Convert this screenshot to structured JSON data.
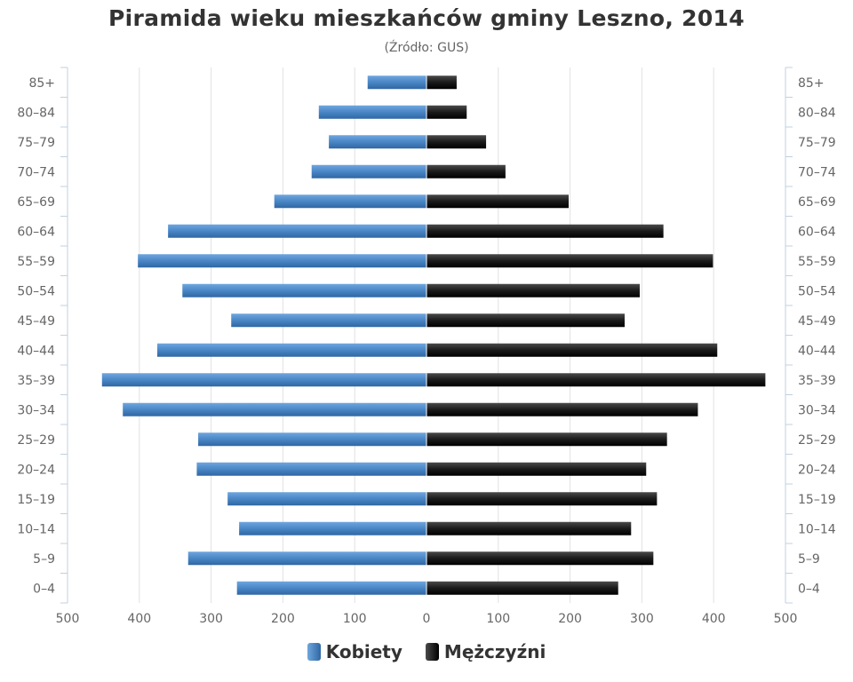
{
  "chart_data": {
    "type": "bar",
    "orientation": "horizontal-pyramid",
    "title": "Piramida wieku mieszkańców gminy Leszno, 2014",
    "subtitle": "(Źródło: GUS)",
    "categories": [
      "85+",
      "80-84",
      "75-79",
      "70-74",
      "65-69",
      "60-64",
      "55-59",
      "50-54",
      "45-49",
      "40-44",
      "35-39",
      "30-34",
      "25-29",
      "20-24",
      "15-19",
      "10-14",
      "5-9",
      "0-4"
    ],
    "x_ticks": [
      "500",
      "400",
      "300",
      "200",
      "100",
      "0",
      "100",
      "200",
      "300",
      "400",
      "500"
    ],
    "xlim": [
      -500,
      500
    ],
    "grid": true,
    "legend_position": "bottom",
    "series": [
      {
        "name": "Kobiety",
        "side": "left",
        "color": "#4a86c5",
        "values": [
          82,
          150,
          136,
          160,
          212,
          360,
          402,
          340,
          272,
          375,
          452,
          423,
          318,
          320,
          277,
          261,
          332,
          264
        ]
      },
      {
        "name": "Mężczyźni",
        "side": "right",
        "color": "#1a1a1a",
        "values": [
          42,
          56,
          83,
          110,
          198,
          330,
          399,
          297,
          276,
          405,
          472,
          378,
          335,
          306,
          321,
          285,
          316,
          267
        ]
      }
    ]
  }
}
